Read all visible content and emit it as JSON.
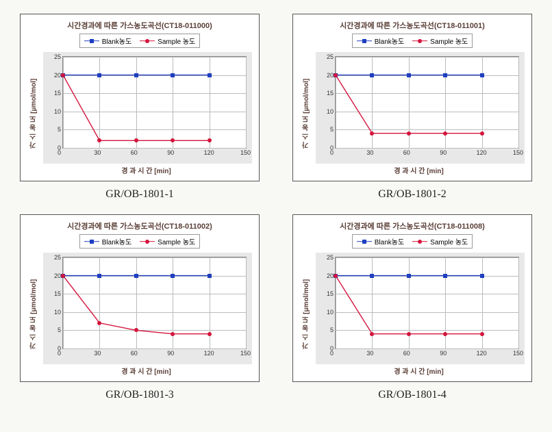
{
  "layout": {
    "rows": 2,
    "cols": 2
  },
  "x_axis": {
    "label": "경 과 시 간 [min]",
    "min": 0,
    "max": 150,
    "ticks": [
      0,
      30,
      60,
      90,
      120,
      150
    ]
  },
  "y_axis": {
    "label": "가 스 농 도 [μmol/mol]",
    "min": 0,
    "max": 25,
    "ticks": [
      0,
      5,
      10,
      15,
      20,
      25
    ]
  },
  "legend": {
    "blank": {
      "label": "Blank농도",
      "color": "#1f3fbf",
      "marker": "square"
    },
    "sample": {
      "label": "Sample 농도",
      "color": "#d4143c",
      "marker": "circle"
    }
  },
  "common": {
    "background_color": "#ffffff",
    "grid_color": "#bbbbbb",
    "plot_bg": "#e8e8e8",
    "inner_bg": "#ffffff",
    "title_fontsize": 11,
    "tick_fontsize": 9,
    "label_fontsize": 10,
    "line_width": 1.8,
    "marker_size": 6
  },
  "charts": [
    {
      "title": "시간경과에 따른 가스농도곡선(CT18-011000)",
      "caption": "GR/OB-1801-1",
      "x": [
        0,
        30,
        60,
        90,
        120
      ],
      "blank": [
        20,
        20,
        20,
        20,
        20
      ],
      "sample": [
        20,
        2,
        2,
        2,
        2
      ]
    },
    {
      "title": "시간경과에 따른 가스농도곡선(CT18-011001)",
      "caption": "GR/OB-1801-2",
      "x": [
        0,
        30,
        60,
        90,
        120
      ],
      "blank": [
        20,
        20,
        20,
        20,
        20
      ],
      "sample": [
        20,
        4,
        4,
        4,
        4
      ]
    },
    {
      "title": "시간경과에 따른 가스농도곡선(CT18-011002)",
      "caption": "GR/OB-1801-3",
      "x": [
        0,
        30,
        60,
        90,
        120
      ],
      "blank": [
        20,
        20,
        20,
        20,
        20
      ],
      "sample": [
        20,
        7,
        5,
        4,
        4
      ]
    },
    {
      "title": "시간경과에 따른 가스농도곡선(CT18-011008)",
      "caption": "GR/OB-1801-4",
      "x": [
        0,
        30,
        60,
        90,
        120
      ],
      "blank": [
        20,
        20,
        20,
        20,
        20
      ],
      "sample": [
        20,
        4,
        4,
        4,
        4
      ]
    }
  ]
}
